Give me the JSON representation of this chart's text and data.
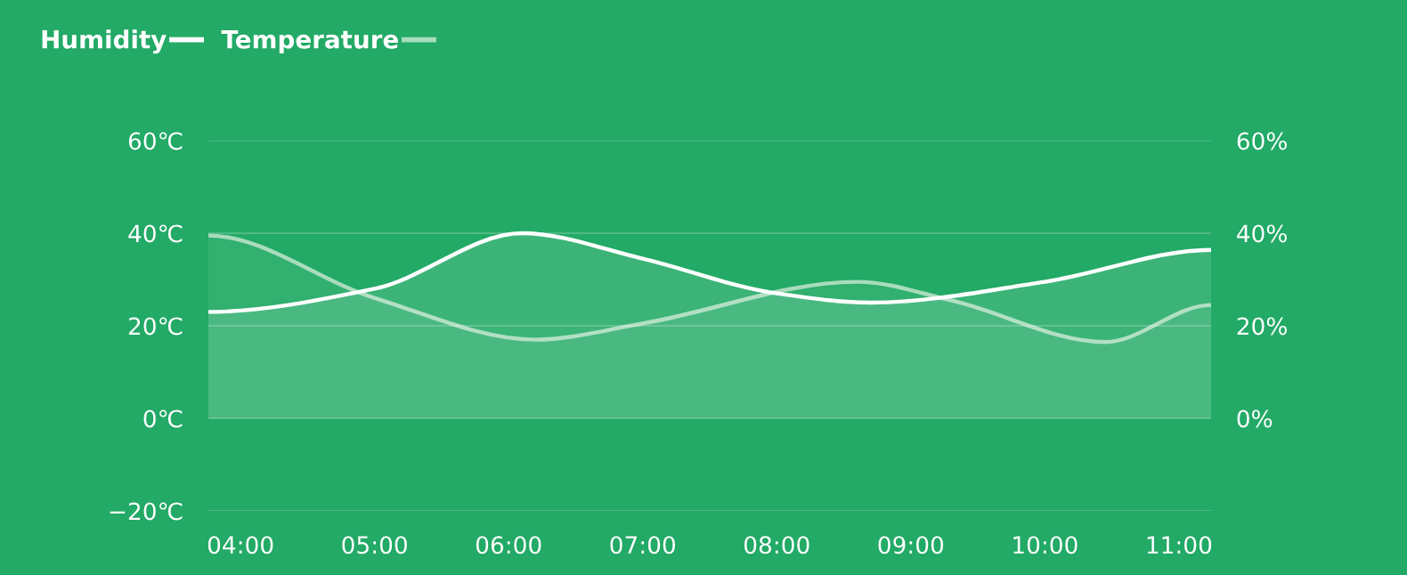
{
  "chart_data": {
    "type": "area",
    "series": [
      {
        "name": "Humidity",
        "color": "#ffffff",
        "axis": "y2",
        "x": [
          3.76,
          5.0,
          6.1,
          7.0,
          8.0,
          8.7,
          10.0,
          11.24
        ],
        "values": [
          23,
          28,
          40,
          34.5,
          27,
          25,
          29.5,
          36.4
        ]
      },
      {
        "name": "Temperature",
        "color": "#a8dcbc",
        "x": [
          3.76,
          5.0,
          6.2,
          7.0,
          8.6,
          9.3,
          10.45,
          11.24
        ],
        "values": [
          39.5,
          26,
          17,
          20.5,
          29.5,
          25.5,
          16.5,
          24.5
        ]
      }
    ],
    "xlim": [
      3.76,
      11.24
    ],
    "xticks": [
      {
        "value": 4,
        "label": "04:00"
      },
      {
        "value": 5,
        "label": "05:00"
      },
      {
        "value": 6,
        "label": "06:00"
      },
      {
        "value": 7,
        "label": "07:00"
      },
      {
        "value": 8,
        "label": "08:00"
      },
      {
        "value": 9,
        "label": "09:00"
      },
      {
        "value": 10,
        "label": "10:00"
      },
      {
        "value": 11,
        "label": "11:00"
      }
    ],
    "ylim": [
      -20,
      60
    ],
    "yticks": [
      {
        "value": -20,
        "label": "−20℃"
      },
      {
        "value": 0,
        "label": "0℃"
      },
      {
        "value": 20,
        "label": "20℃"
      },
      {
        "value": 40,
        "label": "40℃"
      },
      {
        "value": 60,
        "label": "60℃"
      }
    ],
    "y2lim": [
      -20,
      60
    ],
    "y2ticks": [
      {
        "value": 0,
        "label": "0%"
      },
      {
        "value": 20,
        "label": "20%"
      },
      {
        "value": 40,
        "label": "40%"
      },
      {
        "value": 60,
        "label": "60%"
      }
    ],
    "grid": "y",
    "legend": "top left",
    "marker": "none",
    "line_style": "solid"
  }
}
